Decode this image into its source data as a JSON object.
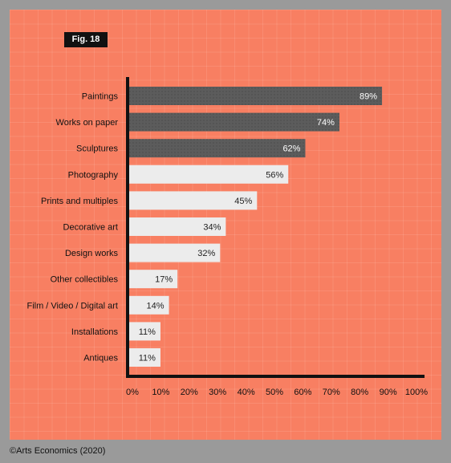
{
  "badge": "Fig. 18",
  "footer": "©Arts Economics (2020)",
  "colors": {
    "background": "#f87f62",
    "bar_dark": "#5c5c5c",
    "bar_light": "#ececec",
    "axis": "#111111"
  },
  "chart_data": {
    "type": "bar",
    "orientation": "horizontal",
    "categories": [
      "Paintings",
      "Works on paper",
      "Sculptures",
      "Photography",
      "Prints and multiples",
      "Decorative art",
      "Design works",
      "Other collectibles",
      "Film / Video / Digital art",
      "Installations",
      "Antiques"
    ],
    "values": [
      89,
      74,
      62,
      56,
      45,
      34,
      32,
      17,
      14,
      11,
      11
    ],
    "value_labels": [
      "89%",
      "74%",
      "62%",
      "56%",
      "45%",
      "34%",
      "32%",
      "17%",
      "14%",
      "11%",
      "11%"
    ],
    "highlighted": [
      true,
      true,
      true,
      false,
      false,
      false,
      false,
      false,
      false,
      false,
      false
    ],
    "xlim": [
      0,
      100
    ],
    "x_ticks": [
      "0%",
      "10%",
      "20%",
      "30%",
      "40%",
      "50%",
      "60%",
      "70%",
      "80%",
      "90%",
      "100%"
    ],
    "grid": true
  }
}
